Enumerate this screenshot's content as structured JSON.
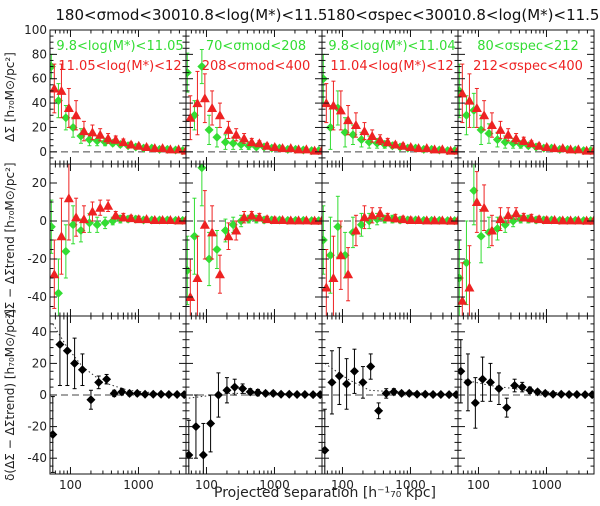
{
  "chart_data": {
    "type": "scatter",
    "xlabel": "Projected separation [h⁻¹₇₀ kpc]",
    "x_scale": "log",
    "xlim": [
      50,
      5000
    ],
    "x_tick_labels": [
      "100",
      "1000"
    ],
    "x": [
      55,
      70,
      90,
      115,
      150,
      200,
      260,
      340,
      440,
      570,
      740,
      960,
      1250,
      1650,
      2150,
      2800,
      3700,
      4700
    ],
    "columns": [
      {
        "title": "180<σmod<300",
        "legend": [
          {
            "text": "9.8<log(M*)<11.05",
            "color": "#33dd33"
          },
          {
            "text": "11.05<log(M*)<12",
            "color": "#ee2222"
          }
        ],
        "top": {
          "green": [
            70,
            42,
            28,
            20,
            13,
            10,
            9,
            8,
            7,
            6,
            5,
            4,
            3,
            3,
            2,
            2,
            1.5,
            1
          ],
          "green_err": [
            10,
            14,
            10,
            8,
            6,
            5,
            4,
            3,
            2,
            2,
            1.5,
            1.5,
            1,
            1,
            1,
            1,
            1,
            1
          ],
          "red": [
            52,
            50,
            36,
            30,
            17,
            16,
            14,
            11,
            10,
            8,
            6,
            5,
            4,
            3,
            3,
            2,
            2,
            1
          ],
          "red_err": [
            20,
            22,
            16,
            12,
            8,
            6,
            5,
            4,
            3,
            2.5,
            2,
            1.5,
            1.5,
            1,
            1,
            1,
            1,
            1
          ]
        },
        "middle": {
          "green": [
            -3,
            -38,
            -16,
            -2,
            -5,
            -1,
            -2,
            -1,
            0,
            1,
            1,
            1,
            0.5,
            0.5,
            0.5,
            0.5,
            0.3,
            0.3
          ],
          "green_err": [
            14,
            18,
            14,
            10,
            6,
            5,
            4,
            3,
            2,
            2,
            1.5,
            1.5,
            1,
            1,
            1,
            1,
            1,
            1
          ],
          "red": [
            -28,
            -8,
            12,
            2,
            1,
            5,
            7,
            8,
            3,
            2,
            1.5,
            1,
            1,
            0.5,
            0.5,
            0.5,
            0.3,
            0.3
          ],
          "red_err": [
            18,
            20,
            22,
            10,
            7,
            5,
            4,
            3,
            2,
            2,
            1.5,
            1.5,
            1,
            1,
            1,
            1,
            1,
            1
          ]
        },
        "bottom": {
          "black": [
            -25,
            32,
            28,
            20,
            16,
            -3,
            8,
            10,
            1,
            2,
            1,
            1,
            0.5,
            0.5,
            0.5,
            0.3,
            0.3,
            0.2
          ],
          "black_err": [
            24,
            26,
            22,
            16,
            10,
            6,
            4,
            3,
            2,
            2,
            1.5,
            1.5,
            1,
            1,
            1,
            1,
            1,
            1
          ],
          "trend": [
            [
              55,
              45
            ],
            [
              90,
              30
            ],
            [
              150,
              18
            ],
            [
              300,
              8
            ],
            [
              700,
              3
            ],
            [
              2000,
              1
            ],
            [
              4700,
              0
            ]
          ]
        }
      },
      {
        "title": "10.8<log(M*)<11.5",
        "legend": [
          {
            "text": "70<σmod<208",
            "color": "#33dd33"
          },
          {
            "text": "208<σmod<400",
            "color": "#ee2222"
          }
        ],
        "top": {
          "green": [
            65,
            30,
            70,
            18,
            12,
            8,
            7,
            6,
            5,
            4,
            4,
            3,
            3,
            2,
            2,
            1.5,
            1,
            1
          ],
          "green_err": [
            16,
            12,
            14,
            12,
            8,
            6,
            5,
            4,
            3,
            2,
            2,
            1.5,
            1,
            1,
            1,
            1,
            1,
            1
          ],
          "red": [
            28,
            40,
            44,
            36,
            30,
            18,
            14,
            11,
            8,
            7,
            5,
            4,
            3,
            3,
            2,
            2,
            1,
            1
          ],
          "red_err": [
            18,
            26,
            20,
            14,
            10,
            7,
            5,
            4,
            3,
            2,
            2,
            1.5,
            1.5,
            1,
            1,
            1,
            1,
            1
          ]
        },
        "middle": {
          "green": [
            -26,
            -8,
            28,
            -20,
            -15,
            -5,
            -2,
            0,
            1,
            1,
            0.5,
            0.5,
            0.5,
            0.3,
            0.3,
            0.3,
            0.2,
            0.2
          ],
          "green_err": [
            18,
            20,
            20,
            14,
            10,
            6,
            4,
            3,
            2,
            2,
            1.5,
            1.5,
            1,
            1,
            1,
            1,
            1,
            1
          ],
          "red": [
            -40,
            -30,
            -2,
            -6,
            -28,
            -8,
            -5,
            2,
            3,
            2,
            1,
            0.5,
            0.5,
            0.3,
            0.3,
            0.3,
            0.2,
            0.2
          ],
          "red_err": [
            20,
            22,
            18,
            14,
            10,
            7,
            5,
            3,
            2,
            2,
            1.5,
            1.5,
            1,
            1,
            1,
            1,
            1,
            1
          ]
        },
        "bottom": {
          "black": [
            -38,
            -20,
            -38,
            -18,
            0,
            3,
            5,
            4,
            2,
            1.5,
            1,
            1,
            0.5,
            0.5,
            0.3,
            0.3,
            0.2,
            0.2
          ],
          "black_err": [
            22,
            20,
            20,
            18,
            14,
            8,
            5,
            3,
            2,
            2,
            1.5,
            1.5,
            1,
            1,
            1,
            1,
            1,
            1
          ],
          "trend": [
            [
              55,
              -2
            ],
            [
              200,
              1
            ],
            [
              1000,
              1
            ],
            [
              4700,
              0
            ]
          ]
        }
      },
      {
        "title": "180<σspec<300",
        "legend": [
          {
            "text": "9.8<log(M*)<11.04",
            "color": "#33dd33"
          },
          {
            "text": "11.04<log(M*)<12",
            "color": "#ee2222"
          }
        ],
        "top": {
          "green": [
            60,
            20,
            36,
            16,
            14,
            10,
            8,
            7,
            6,
            5,
            4,
            3,
            3,
            2,
            2,
            1.5,
            1,
            1
          ],
          "green_err": [
            20,
            18,
            14,
            12,
            8,
            6,
            5,
            4,
            3,
            2,
            2,
            1.5,
            1,
            1,
            1,
            1,
            1,
            1
          ],
          "red": [
            40,
            38,
            34,
            26,
            22,
            17,
            13,
            10,
            8,
            6,
            5,
            4,
            3,
            3,
            2,
            2,
            1,
            1
          ],
          "red_err": [
            16,
            20,
            16,
            12,
            10,
            7,
            5,
            4,
            3,
            2,
            2,
            1.5,
            1.5,
            1,
            1,
            1,
            1,
            1
          ]
        },
        "middle": {
          "green": [
            -10,
            -18,
            -3,
            -18,
            -6,
            -2,
            0,
            1,
            1,
            1,
            0.5,
            0.5,
            0.5,
            0.3,
            0.3,
            0.3,
            0.2,
            0.2
          ],
          "green_err": [
            18,
            20,
            16,
            12,
            8,
            6,
            4,
            3,
            2,
            2,
            1.5,
            1.5,
            1,
            1,
            1,
            1,
            1,
            1
          ],
          "red": [
            -35,
            -30,
            -18,
            -28,
            -5,
            2,
            3,
            4,
            2,
            1.5,
            1,
            0.5,
            0.5,
            0.3,
            0.3,
            0.3,
            0.2,
            0.2
          ],
          "red_err": [
            20,
            22,
            18,
            14,
            8,
            6,
            4,
            3,
            2,
            2,
            1.5,
            1.5,
            1,
            1,
            1,
            1,
            1,
            1
          ]
        },
        "bottom": {
          "black": [
            -35,
            8,
            12,
            7,
            15,
            8,
            18,
            -10,
            1,
            2,
            1,
            1,
            0.5,
            0.5,
            0.3,
            0.3,
            0.2,
            0.2
          ],
          "black_err": [
            26,
            20,
            18,
            16,
            14,
            10,
            8,
            5,
            3,
            2,
            1.5,
            1.5,
            1,
            1,
            1,
            1,
            1,
            1
          ],
          "trend": [
            [
              55,
              20
            ],
            [
              120,
              10
            ],
            [
              250,
              3
            ],
            [
              600,
              2
            ],
            [
              2000,
              1
            ],
            [
              4700,
              0
            ]
          ]
        }
      },
      {
        "title": "10.8<log(M*)<11.5",
        "legend": [
          {
            "text": "80<σspec<212",
            "color": "#33dd33"
          },
          {
            "text": "212<σspec<400",
            "color": "#ee2222"
          }
        ],
        "top": {
          "green": [
            50,
            30,
            34,
            18,
            15,
            10,
            8,
            7,
            6,
            5,
            4,
            3,
            3,
            2,
            2,
            1.5,
            1,
            1
          ],
          "green_err": [
            22,
            16,
            14,
            12,
            8,
            6,
            5,
            4,
            3,
            2,
            2,
            1.5,
            1,
            1,
            1,
            1,
            1,
            1
          ],
          "red": [
            48,
            42,
            36,
            30,
            22,
            18,
            14,
            11,
            9,
            7,
            5,
            4,
            3,
            3,
            2,
            2,
            1,
            1
          ],
          "red_err": [
            24,
            22,
            16,
            12,
            10,
            7,
            5,
            4,
            3,
            2,
            2,
            1.5,
            1.5,
            1,
            1,
            1,
            1,
            1
          ]
        },
        "middle": {
          "green": [
            -30,
            -22,
            16,
            -8,
            -6,
            -4,
            -2,
            0,
            1,
            1,
            0.5,
            0.5,
            0.5,
            0.3,
            0.3,
            0.3,
            0.2,
            0.2
          ],
          "green_err": [
            20,
            22,
            18,
            14,
            8,
            6,
            4,
            3,
            2,
            2,
            1.5,
            1.5,
            1,
            1,
            1,
            1,
            1,
            1
          ],
          "red": [
            -42,
            -35,
            10,
            7,
            -5,
            1,
            3,
            4,
            2,
            1.5,
            1,
            0.5,
            0.5,
            0.3,
            0.3,
            0.3,
            0.2,
            0.2
          ],
          "red_err": [
            20,
            22,
            16,
            12,
            8,
            6,
            4,
            3,
            2,
            2,
            1.5,
            1.5,
            1,
            1,
            1,
            1,
            1,
            1
          ]
        },
        "bottom": {
          "black": [
            15,
            8,
            -5,
            10,
            8,
            4,
            -8,
            6,
            5,
            3,
            2,
            1,
            0.5,
            0.5,
            0.3,
            0.3,
            0.2,
            0.2
          ],
          "black_err": [
            20,
            18,
            16,
            14,
            12,
            10,
            6,
            4,
            3,
            2,
            1.5,
            1.5,
            1,
            1,
            1,
            1,
            1,
            1
          ],
          "trend": [
            [
              55,
              10
            ],
            [
              150,
              6
            ],
            [
              500,
              3
            ],
            [
              2000,
              1
            ],
            [
              4700,
              0
            ]
          ]
        }
      }
    ],
    "rows": [
      {
        "ylabel": "ΔΣ [h₇₀M⊙/pc²]",
        "ylim": [
          -10,
          100
        ],
        "y_ticks": [
          0,
          20,
          40,
          60,
          80,
          100
        ],
        "zero_line": 0
      },
      {
        "ylabel": "ΔΣ − ΔΣtrend [h₇₀M⊙/pc²]",
        "ylim": [
          -50,
          30
        ],
        "y_ticks": [
          -40,
          -20,
          0,
          20
        ],
        "zero_line": 0
      },
      {
        "ylabel": "δ(ΔΣ − ΔΣtrend) [h₇₀M⊙/pc²]",
        "ylim": [
          -50,
          50
        ],
        "y_ticks": [
          -40,
          -20,
          0,
          20,
          40
        ],
        "zero_line": 0
      }
    ],
    "colors": {
      "green": "#33dd33",
      "red": "#ee2222",
      "black": "#000000"
    }
  }
}
